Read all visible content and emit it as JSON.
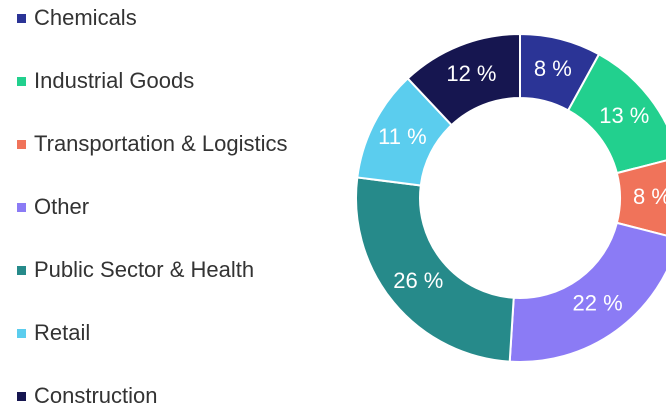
{
  "chart_data": {
    "type": "donut",
    "categories": [
      "Chemicals",
      "Industrial Goods",
      "Transportation & Logistics",
      "Other",
      "Public Sector & Health",
      "Retail",
      "Construction"
    ],
    "values": [
      8,
      13,
      8,
      22,
      26,
      11,
      12
    ],
    "value_labels": [
      "8 %",
      "13 %",
      "8 %",
      "22 %",
      "26 %",
      "11 %",
      "12 %"
    ],
    "colors": [
      "#2b3496",
      "#22d08e",
      "#f0735a",
      "#8b7bf5",
      "#268a8a",
      "#5bcdee",
      "#161650"
    ],
    "legend": "left"
  }
}
